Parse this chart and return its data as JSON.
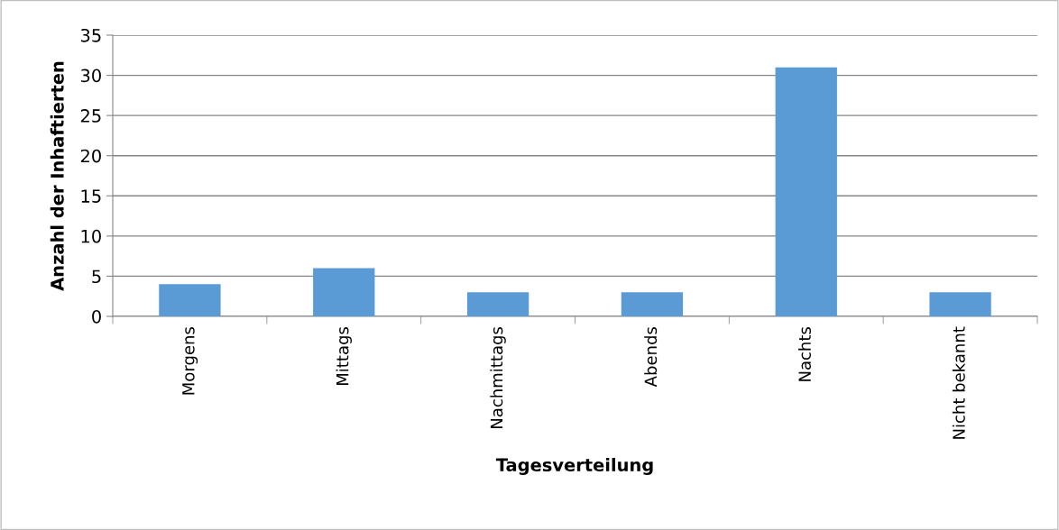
{
  "chart_data": {
    "type": "bar",
    "xlabel": "Tagesverteilung",
    "ylabel": "Anzahl der Inhaftierten",
    "categories": [
      "Morgens",
      "Mittags",
      "Nachmittags",
      "Abends",
      "Nachts",
      "Nicht bekannt"
    ],
    "values": [
      4,
      6,
      3,
      3,
      31,
      3
    ],
    "color": "#5b9bd5",
    "ylim": [
      0,
      35
    ],
    "yticks": [
      0,
      5,
      10,
      15,
      20,
      25,
      30,
      35
    ],
    "grid": "y",
    "legend": false
  }
}
